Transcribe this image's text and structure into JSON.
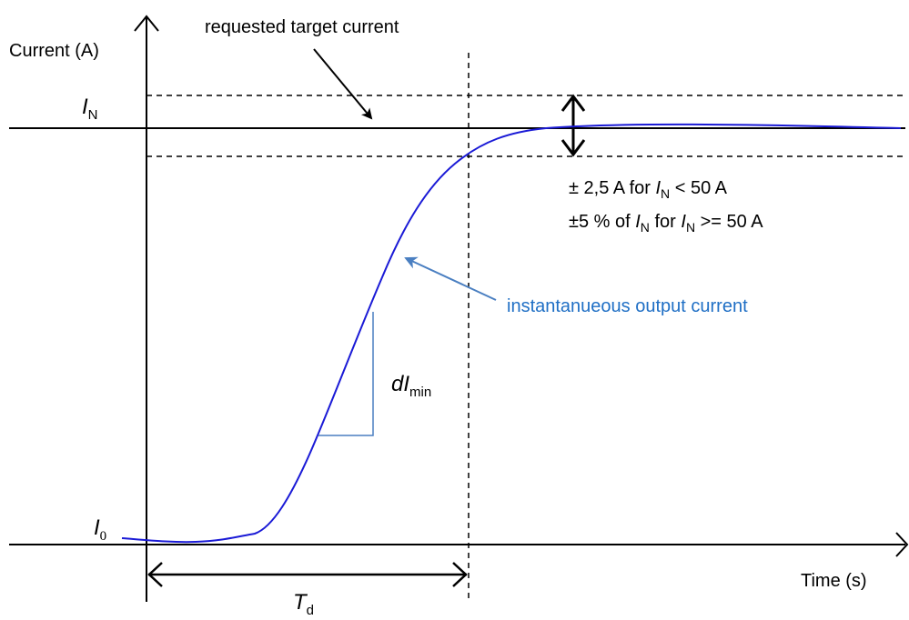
{
  "y_axis_label": "Current  (A)",
  "x_axis_label": "Time (s)",
  "target_label": "requested target current",
  "curve_label": "instantanueous output current",
  "symbols": {
    "IN_main": "I",
    "IN_sub": "N",
    "I0_main": "I",
    "I0_sub": "0",
    "Td_main": "T",
    "Td_sub": "d",
    "dI_main": "dI",
    "dI_sub": "min"
  },
  "tolerance": {
    "line1_prefix": "± 2,5 A for ",
    "line1_var": "I",
    "line1_var_sub": "N",
    "line1_suffix": " < 50 A",
    "line2_prefix": "±5 % of ",
    "line2_var1": "I",
    "line2_var1_sub": "N",
    "line2_mid": " for ",
    "line2_var2": "I",
    "line2_var2_sub": "N",
    "line2_suffix": " >= 50 A"
  },
  "colors": {
    "curve": "#1a1ad6",
    "annotation_blue": "#1f6fc5",
    "slope_triangle": "#4a7fc1",
    "axes": "#000000"
  }
}
